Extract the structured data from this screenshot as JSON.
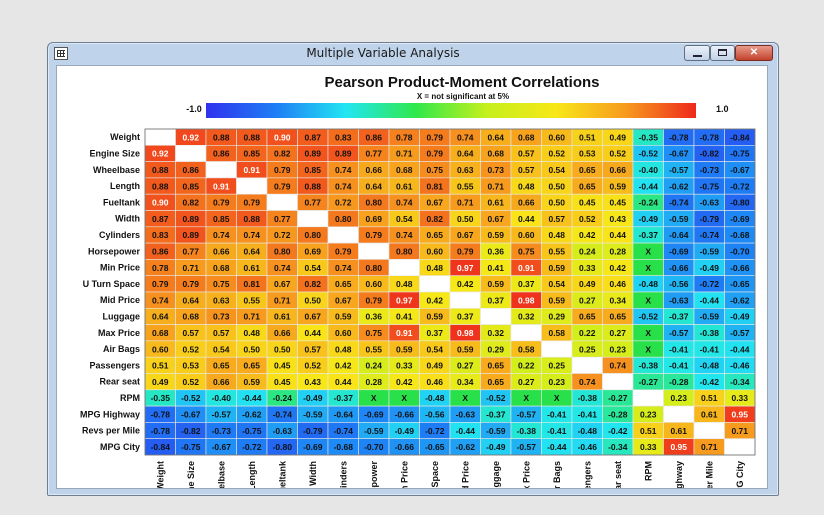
{
  "window": {
    "title": "Multiple Variable Analysis",
    "close_glyph": "✕"
  },
  "chart_data": {
    "type": "heatmap",
    "title": "Pearson Product-Moment Correlations",
    "subtitle": "X = not significant at 5%",
    "colorbar": {
      "min_label": "-1.0",
      "max_label": "1.0",
      "colors": [
        "#2f32ee",
        "#1e7ef5",
        "#22e6f2",
        "#2fe84a",
        "#c4f01c",
        "#f8e718",
        "#f79a1e",
        "#ee2a1c"
      ]
    },
    "variables": [
      "Weight",
      "Engine Size",
      "Wheelbase",
      "Length",
      "Fueltank",
      "Width",
      "Cylinders",
      "Horsepower",
      "Min Price",
      "U Turn Space",
      "Mid Price",
      "Luggage",
      "Max Price",
      "Air Bags",
      "Passengers",
      "Rear seat",
      "RPM",
      "MPG Highway",
      "Revs per Mile",
      "MPG City"
    ],
    "cells": [
      [
        "",
        "0.92",
        "0.88",
        "0.88",
        "0.90",
        "0.87",
        "0.83",
        "0.86",
        "0.78",
        "0.79",
        "0.74",
        "0.64",
        "0.68",
        "0.60",
        "0.51",
        "0.49",
        "-0.35",
        "-0.78",
        "-0.78",
        "-0.84"
      ],
      [
        "0.92",
        "",
        "0.86",
        "0.85",
        "0.82",
        "0.89",
        "0.89",
        "0.77",
        "0.71",
        "0.79",
        "0.64",
        "0.68",
        "0.57",
        "0.52",
        "0.53",
        "0.52",
        "-0.52",
        "-0.67",
        "-0.82",
        "-0.75"
      ],
      [
        "0.88",
        "0.86",
        "",
        "0.91",
        "0.79",
        "0.85",
        "0.74",
        "0.66",
        "0.68",
        "0.75",
        "0.63",
        "0.73",
        "0.57",
        "0.54",
        "0.65",
        "0.66",
        "-0.40",
        "-0.57",
        "-0.73",
        "-0.67"
      ],
      [
        "0.88",
        "0.85",
        "0.91",
        "",
        "0.79",
        "0.88",
        "0.74",
        "0.64",
        "0.61",
        "0.81",
        "0.55",
        "0.71",
        "0.48",
        "0.50",
        "0.65",
        "0.59",
        "-0.44",
        "-0.62",
        "-0.75",
        "-0.72"
      ],
      [
        "0.90",
        "0.82",
        "0.79",
        "0.79",
        "",
        "0.77",
        "0.72",
        "0.80",
        "0.74",
        "0.67",
        "0.71",
        "0.61",
        "0.66",
        "0.50",
        "0.45",
        "0.45",
        "-0.24",
        "-0.74",
        "-0.63",
        "-0.80"
      ],
      [
        "0.87",
        "0.89",
        "0.85",
        "0.88",
        "0.77",
        "",
        "0.80",
        "0.69",
        "0.54",
        "0.82",
        "0.50",
        "0.67",
        "0.44",
        "0.57",
        "0.52",
        "0.43",
        "-0.49",
        "-0.59",
        "-0.79",
        "-0.69"
      ],
      [
        "0.83",
        "0.89",
        "0.74",
        "0.74",
        "0.72",
        "0.80",
        "",
        "0.79",
        "0.74",
        "0.65",
        "0.67",
        "0.59",
        "0.60",
        "0.48",
        "0.42",
        "0.44",
        "-0.37",
        "-0.64",
        "-0.74",
        "-0.68"
      ],
      [
        "0.86",
        "0.77",
        "0.66",
        "0.64",
        "0.80",
        "0.69",
        "0.79",
        "",
        "0.80",
        "0.60",
        "0.79",
        "0.36",
        "0.75",
        "0.55",
        "0.24",
        "0.28",
        "X",
        "-0.69",
        "-0.59",
        "-0.70"
      ],
      [
        "0.78",
        "0.71",
        "0.68",
        "0.61",
        "0.74",
        "0.54",
        "0.74",
        "0.80",
        "",
        "0.48",
        "0.97",
        "0.41",
        "0.91",
        "0.59",
        "0.33",
        "0.42",
        "X",
        "-0.66",
        "-0.49",
        "-0.66"
      ],
      [
        "0.79",
        "0.79",
        "0.75",
        "0.81",
        "0.67",
        "0.82",
        "0.65",
        "0.60",
        "0.48",
        "",
        "0.42",
        "0.59",
        "0.37",
        "0.54",
        "0.49",
        "0.46",
        "-0.48",
        "-0.56",
        "-0.72",
        "-0.65"
      ],
      [
        "0.74",
        "0.64",
        "0.63",
        "0.55",
        "0.71",
        "0.50",
        "0.67",
        "0.79",
        "0.97",
        "0.42",
        "",
        "0.37",
        "0.98",
        "0.59",
        "0.27",
        "0.34",
        "X",
        "-0.63",
        "-0.44",
        "-0.62"
      ],
      [
        "0.64",
        "0.68",
        "0.73",
        "0.71",
        "0.61",
        "0.67",
        "0.59",
        "0.36",
        "0.41",
        "0.59",
        "0.37",
        "",
        "0.32",
        "0.29",
        "0.65",
        "0.65",
        "-0.52",
        "-0.37",
        "-0.59",
        "-0.49"
      ],
      [
        "0.68",
        "0.57",
        "0.57",
        "0.48",
        "0.66",
        "0.44",
        "0.60",
        "0.75",
        "0.91",
        "0.37",
        "0.98",
        "0.32",
        "",
        "0.58",
        "0.22",
        "0.27",
        "X",
        "-0.57",
        "-0.38",
        "-0.57"
      ],
      [
        "0.60",
        "0.52",
        "0.54",
        "0.50",
        "0.50",
        "0.57",
        "0.48",
        "0.55",
        "0.59",
        "0.54",
        "0.59",
        "0.29",
        "0.58",
        "",
        "0.25",
        "0.23",
        "X",
        "-0.41",
        "-0.41",
        "-0.44"
      ],
      [
        "0.51",
        "0.53",
        "0.65",
        "0.65",
        "0.45",
        "0.52",
        "0.42",
        "0.24",
        "0.33",
        "0.49",
        "0.27",
        "0.65",
        "0.22",
        "0.25",
        "",
        "0.74",
        "-0.38",
        "-0.41",
        "-0.48",
        "-0.46"
      ],
      [
        "0.49",
        "0.52",
        "0.66",
        "0.59",
        "0.45",
        "0.43",
        "0.44",
        "0.28",
        "0.42",
        "0.46",
        "0.34",
        "0.65",
        "0.27",
        "0.23",
        "0.74",
        "",
        "-0.27",
        "-0.28",
        "-0.42",
        "-0.34"
      ],
      [
        "-0.35",
        "-0.52",
        "-0.40",
        "-0.44",
        "-0.24",
        "-0.49",
        "-0.37",
        "X",
        "X",
        "-0.48",
        "X",
        "-0.52",
        "X",
        "X",
        "-0.38",
        "-0.27",
        "",
        "0.23",
        "0.51",
        "0.33"
      ],
      [
        "-0.78",
        "-0.67",
        "-0.57",
        "-0.62",
        "-0.74",
        "-0.59",
        "-0.64",
        "-0.69",
        "-0.66",
        "-0.56",
        "-0.63",
        "-0.37",
        "-0.57",
        "-0.41",
        "-0.41",
        "-0.28",
        "0.23",
        "",
        "0.61",
        "0.95"
      ],
      [
        "-0.78",
        "-0.82",
        "-0.73",
        "-0.75",
        "-0.63",
        "-0.79",
        "-0.74",
        "-0.59",
        "-0.49",
        "-0.72",
        "-0.44",
        "-0.59",
        "-0.38",
        "-0.41",
        "-0.48",
        "-0.42",
        "0.51",
        "0.61",
        "",
        "0.71"
      ],
      [
        "-0.84",
        "-0.75",
        "-0.67",
        "-0.72",
        "-0.80",
        "-0.69",
        "-0.68",
        "-0.70",
        "-0.66",
        "-0.65",
        "-0.62",
        "-0.49",
        "-0.57",
        "-0.44",
        "-0.46",
        "-0.34",
        "0.33",
        "0.95",
        "0.71",
        ""
      ]
    ]
  }
}
